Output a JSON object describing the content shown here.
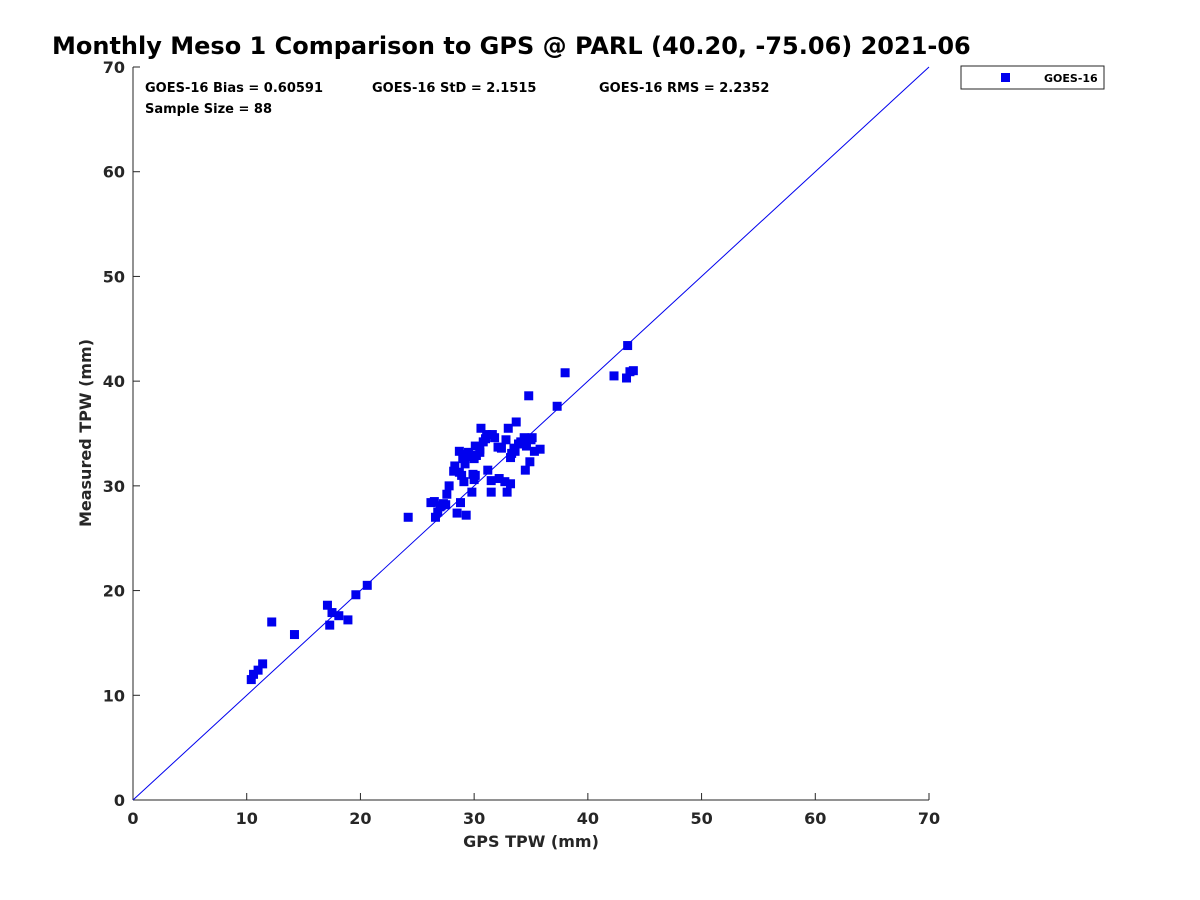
{
  "chart_data": {
    "type": "scatter",
    "title": "Monthly Meso 1 Comparison to GPS @ PARL (40.20, -75.06) 2021-06",
    "xlabel": "GPS TPW (mm)",
    "ylabel": "Measured TPW (mm)",
    "xlim": [
      0,
      70
    ],
    "ylim": [
      0,
      70
    ],
    "xticks": [
      "0",
      "10",
      "20",
      "30",
      "40",
      "50",
      "60",
      "70"
    ],
    "yticks": [
      "0",
      "10",
      "20",
      "30",
      "40",
      "50",
      "60",
      "70"
    ],
    "grid": false,
    "legend_position": "outside-top-right",
    "reference_line": {
      "x": [
        0,
        70
      ],
      "y": [
        0,
        70
      ],
      "color": "#0000ee"
    },
    "stats": {
      "bias": "GOES-16 Bias = 0.60591",
      "std": "GOES-16 StD = 2.1515",
      "rms": "GOES-16 RMS = 2.2352",
      "sample_size": "Sample Size = 88"
    },
    "series": [
      {
        "name": "GOES-16",
        "color": "#0000ee",
        "marker": "square",
        "points": [
          [
            10.4,
            11.5
          ],
          [
            10.6,
            12.0
          ],
          [
            11.0,
            12.4
          ],
          [
            11.4,
            13.0
          ],
          [
            12.2,
            17.0
          ],
          [
            14.2,
            15.8
          ],
          [
            17.1,
            18.6
          ],
          [
            17.3,
            16.7
          ],
          [
            17.5,
            17.9
          ],
          [
            18.1,
            17.6
          ],
          [
            18.9,
            17.2
          ],
          [
            19.6,
            19.6
          ],
          [
            20.6,
            20.5
          ],
          [
            24.2,
            27.0
          ],
          [
            26.2,
            28.4
          ],
          [
            26.5,
            28.5
          ],
          [
            26.6,
            27.0
          ],
          [
            26.8,
            27.5
          ],
          [
            27.0,
            28.0
          ],
          [
            27.3,
            28.3
          ],
          [
            27.5,
            28.2
          ],
          [
            27.6,
            29.2
          ],
          [
            27.8,
            30.0
          ],
          [
            28.2,
            31.4
          ],
          [
            28.3,
            31.9
          ],
          [
            28.5,
            27.4
          ],
          [
            28.7,
            33.3
          ],
          [
            28.8,
            28.4
          ],
          [
            28.9,
            31.0
          ],
          [
            29.0,
            32.6
          ],
          [
            29.1,
            30.4
          ],
          [
            29.1,
            33.0
          ],
          [
            29.2,
            32.1
          ],
          [
            29.3,
            27.2
          ],
          [
            29.5,
            33.2
          ],
          [
            29.8,
            29.4
          ],
          [
            29.9,
            31.1
          ],
          [
            30.0,
            30.6
          ],
          [
            30.0,
            32.6
          ],
          [
            30.1,
            33.8
          ],
          [
            30.2,
            32.9
          ],
          [
            30.5,
            33.2
          ],
          [
            30.5,
            33.5
          ],
          [
            30.6,
            35.5
          ],
          [
            30.8,
            34.2
          ],
          [
            31.1,
            34.9
          ],
          [
            31.2,
            31.5
          ],
          [
            31.5,
            29.4
          ],
          [
            31.5,
            30.5
          ],
          [
            31.6,
            34.9
          ],
          [
            31.8,
            34.6
          ],
          [
            32.1,
            33.7
          ],
          [
            32.2,
            30.7
          ],
          [
            32.7,
            30.4
          ],
          [
            32.8,
            34.4
          ],
          [
            32.9,
            29.4
          ],
          [
            33.0,
            35.5
          ],
          [
            33.2,
            30.2
          ],
          [
            33.2,
            32.7
          ],
          [
            33.3,
            33.1
          ],
          [
            33.5,
            33.6
          ],
          [
            33.6,
            33.3
          ],
          [
            33.7,
            36.1
          ],
          [
            33.9,
            34.0
          ],
          [
            34.1,
            34.2
          ],
          [
            34.4,
            34.6
          ],
          [
            34.5,
            31.5
          ],
          [
            34.6,
            33.8
          ],
          [
            34.8,
            38.6
          ],
          [
            34.9,
            32.3
          ],
          [
            35.0,
            34.4
          ],
          [
            35.3,
            33.3
          ],
          [
            35.8,
            33.5
          ],
          [
            37.3,
            37.6
          ],
          [
            38.0,
            40.8
          ],
          [
            42.3,
            40.5
          ],
          [
            43.4,
            40.3
          ],
          [
            43.5,
            43.4
          ],
          [
            43.7,
            40.9
          ],
          [
            44.0,
            41.0
          ],
          [
            28.7,
            31.3
          ],
          [
            29.3,
            32.8
          ],
          [
            31.0,
            34.5
          ],
          [
            32.4,
            33.6
          ],
          [
            34.2,
            34.1
          ],
          [
            35.1,
            34.6
          ],
          [
            27.1,
            28.1
          ],
          [
            30.1,
            31.0
          ]
        ]
      }
    ]
  }
}
